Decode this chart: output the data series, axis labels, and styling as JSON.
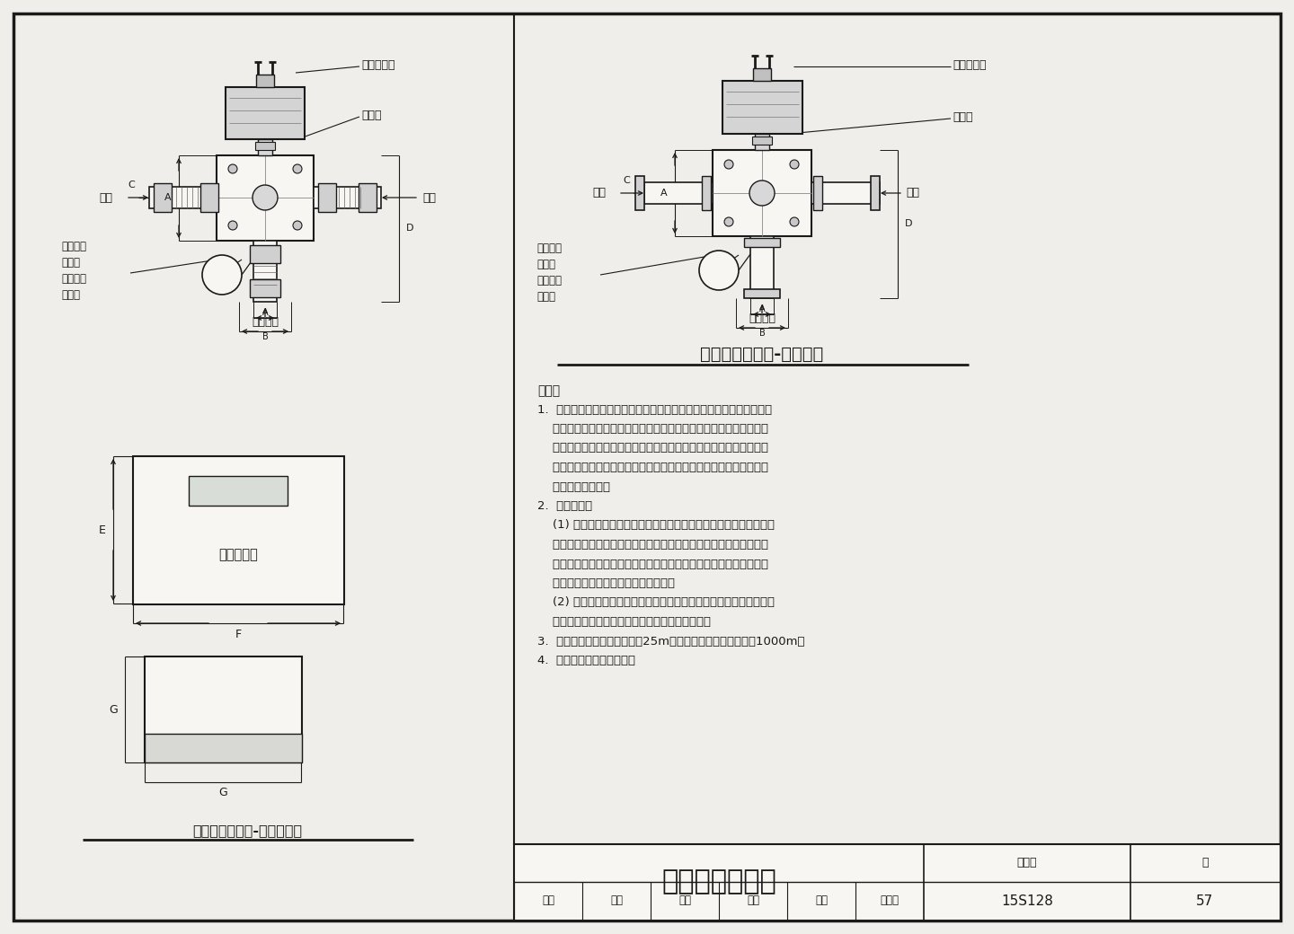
{
  "bg_color": "#f0eeea",
  "line_color": "#1a1a1a",
  "white": "#f8f6f2",
  "title_main": "电子恒温混合阀",
  "title_left": "电子恒温混合阀-内螺纹活接",
  "title_right": "电子恒温混合阀-法兰连接",
  "figure_no_label": "图集号",
  "figure_no": "15S128",
  "page_label": "页",
  "page_no": "57",
  "notes_title": "说明：",
  "note1_lines": [
    "1.  电子恒温混合阀由电子恒温混合阀和电子调节器组成。包括普通电子",
    "    恒温混合阀和编程式电子恒温混合阀两种。普通电子恒温混合阀具有",
    "    保证供给用户热水水温恒定的功能。编程式电子恒温混合阀具有保证",
    "    供给用户热水水温恒定和控制高温杀灭军团菌系统的杀菌时间、核实",
    "    杀菌温度的功能。"
  ],
  "note2_lines": [
    "2.  工作原理：",
    "    (1) 电子恒温混合阀的热水进水端与储热水箱热水出水管连接，冷水",
    "    进水端与冷水管连接，混合出水口为热水供水。混合阀出口的温度传",
    "    感器将混合后的热水温度传送到电子调节器，控制混合阀。通过调节",
    "    冷热水进水比例，调节混合出水温度。",
    "    (2) 调节器上的数字计时器，可设置高温杀灭军团菌的时间段。通过",
    "    回水温度传感器反馈的数据，可以核实杀菌温度。"
  ],
  "note3": "3.  供水温度传感器最长距离：25m；回水温度传感器最长距离1000m。",
  "note4": "4.  本图根据市售产品绘制。"
}
